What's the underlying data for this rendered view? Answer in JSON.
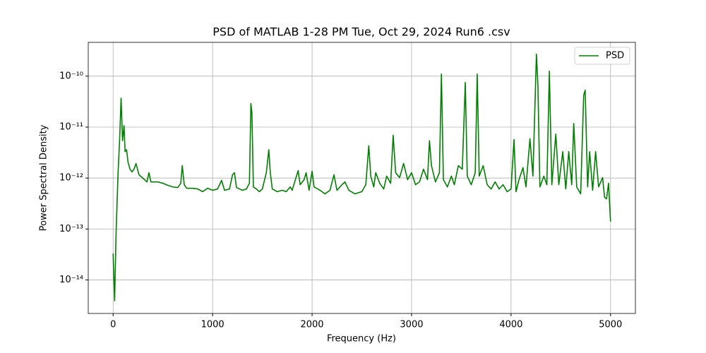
{
  "chart_data": {
    "type": "line",
    "title": "PSD of MATLAB 1-28 PM Tue, Oct 29, 2024 Run6 .csv",
    "x_label": "Frequency (Hz)",
    "y_label": "Power Spectral Density",
    "x": [
      0,
      15,
      30,
      50,
      65,
      80,
      95,
      110,
      120,
      135,
      150,
      170,
      190,
      210,
      230,
      260,
      300,
      340,
      360,
      380,
      450,
      500,
      550,
      600,
      650,
      680,
      695,
      715,
      740,
      800,
      850,
      900,
      950,
      1000,
      1050,
      1090,
      1120,
      1170,
      1200,
      1220,
      1240,
      1300,
      1340,
      1370,
      1385,
      1395,
      1410,
      1440,
      1470,
      1500,
      1540,
      1565,
      1580,
      1600,
      1650,
      1700,
      1740,
      1780,
      1800,
      1860,
      1880,
      1920,
      1940,
      1970,
      2000,
      2020,
      2080,
      2130,
      2180,
      2220,
      2250,
      2300,
      2330,
      2370,
      2430,
      2500,
      2540,
      2570,
      2590,
      2620,
      2640,
      2680,
      2720,
      2750,
      2790,
      2815,
      2840,
      2880,
      2920,
      2960,
      3000,
      3040,
      3080,
      3120,
      3160,
      3180,
      3200,
      3240,
      3280,
      3300,
      3320,
      3360,
      3400,
      3430,
      3470,
      3510,
      3540,
      3560,
      3600,
      3640,
      3660,
      3680,
      3720,
      3760,
      3800,
      3840,
      3880,
      3920,
      3960,
      4000,
      4030,
      4050,
      4080,
      4120,
      4150,
      4190,
      4220,
      4255,
      4270,
      4290,
      4330,
      4360,
      4385,
      4410,
      4450,
      4480,
      4520,
      4550,
      4580,
      4610,
      4630,
      4660,
      4700,
      4730,
      4745,
      4770,
      4790,
      4820,
      4850,
      4880,
      4920,
      4940,
      4960,
      4980,
      5000
    ],
    "series": [
      {
        "name": "PSD",
        "color": "#008000",
        "values": [
          3.3e-14,
          3.9e-15,
          8.5e-14,
          1.3e-12,
          5.4e-12,
          3.7e-11,
          5.4e-12,
          1.07e-11,
          3.3e-12,
          3.6e-12,
          2.05e-12,
          1.49e-12,
          1.32e-12,
          1.49e-12,
          1.93e-12,
          1.16e-12,
          9.9e-13,
          8.4e-13,
          1.27e-12,
          8.4e-13,
          8.4e-13,
          7.9e-13,
          7.2e-13,
          6.7e-13,
          6.5e-13,
          7.9e-13,
          1.75e-12,
          7.4e-13,
          6.3e-13,
          6.3e-13,
          6.1e-13,
          5.4e-13,
          6.3e-13,
          5.75e-13,
          6.1e-13,
          9e-13,
          5.75e-13,
          6.1e-13,
          1.16e-12,
          1.27e-12,
          6.5e-13,
          5.75e-13,
          6.1e-13,
          7.9e-13,
          2.9e-11,
          1.9e-11,
          6.7e-13,
          6.1e-13,
          5.4e-13,
          6.1e-13,
          1.27e-12,
          3.6e-12,
          1.27e-12,
          6.1e-13,
          5.4e-13,
          5.75e-13,
          5.4e-13,
          6.7e-13,
          5.75e-13,
          1.4e-12,
          7.4e-13,
          9.3e-13,
          1.27e-12,
          5.75e-13,
          1.36e-12,
          6.7e-13,
          5.75e-13,
          4.9e-13,
          5.75e-13,
          1.16e-12,
          5.75e-13,
          7.4e-13,
          8.4e-13,
          5.75e-13,
          4.9e-13,
          5.4e-13,
          7.4e-13,
          4.3e-12,
          1.09e-12,
          6.7e-13,
          1.27e-12,
          7.9e-13,
          6.1e-13,
          1.09e-12,
          7.9e-13,
          6.9e-12,
          1.27e-12,
          1.02e-12,
          1.93e-12,
          9.3e-13,
          1.27e-12,
          7.4e-13,
          8.4e-13,
          1.49e-12,
          9.3e-13,
          5.4e-12,
          1.75e-12,
          8.4e-13,
          1.27e-12,
          1.1e-10,
          9.3e-13,
          6.7e-13,
          1.09e-12,
          7.4e-13,
          1.75e-12,
          1.49e-12,
          7.5e-11,
          1.09e-12,
          7.4e-13,
          1.27e-12,
          1.1e-10,
          1.09e-12,
          1.75e-12,
          7.4e-13,
          6.1e-13,
          8.4e-13,
          6.1e-13,
          7.4e-13,
          5.4e-13,
          6.1e-13,
          5.7e-12,
          5.4e-13,
          9.3e-13,
          1.6e-12,
          6.7e-13,
          5.9e-12,
          1.09e-12,
          2.7e-10,
          6.8e-11,
          6.7e-13,
          1.09e-12,
          7.4e-13,
          1.25e-10,
          7.4e-13,
          7.3e-12,
          7.4e-13,
          3.3e-12,
          6.1e-13,
          3.3e-12,
          7.4e-13,
          1.18e-11,
          6.7e-13,
          4.9e-13,
          4.2e-11,
          5.3e-11,
          6.7e-13,
          3.3e-12,
          5.75e-13,
          3.3e-12,
          6.7e-13,
          1.02e-12,
          4.2e-13,
          3.9e-13,
          7.9e-13,
          1.4e-13
        ]
      }
    ],
    "xlim": [
      -250,
      5250
    ],
    "xticks": [
      0,
      1000,
      2000,
      3000,
      4000,
      5000
    ],
    "ylim": [
      2.2e-15,
      4.6e-10
    ],
    "yticks": [
      {
        "value": 1e-14,
        "label": "10⁻¹⁴"
      },
      {
        "value": 1e-13,
        "label": "10⁻¹³"
      },
      {
        "value": 1e-12,
        "label": "10⁻¹²"
      },
      {
        "value": 1e-11,
        "label": "10⁻¹¹"
      },
      {
        "value": 1e-10,
        "label": "10⁻¹⁰"
      }
    ],
    "y_scale": "log",
    "grid": true,
    "legend": "upper right"
  }
}
